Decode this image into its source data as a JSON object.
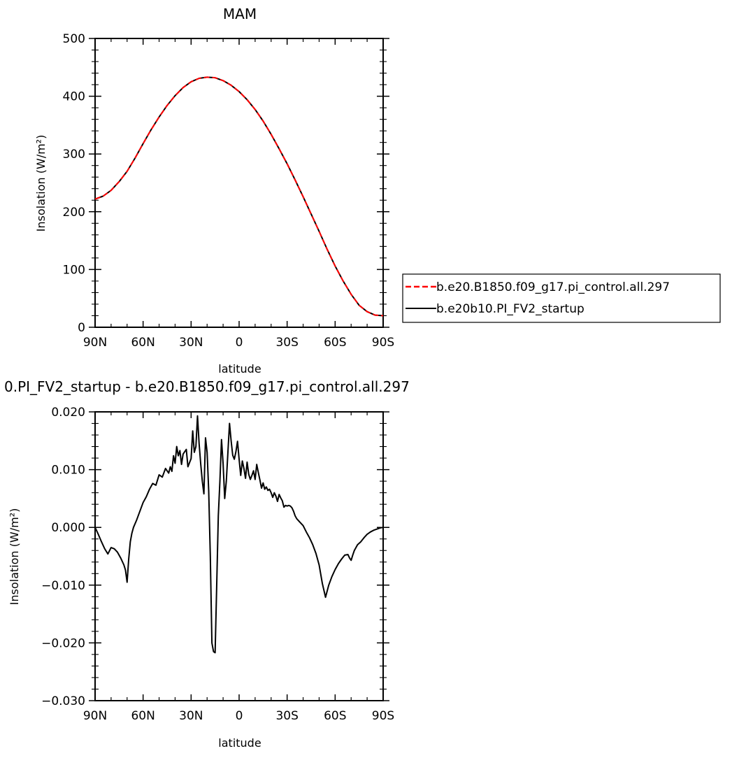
{
  "chart_data": [
    {
      "type": "line",
      "title": "MAM",
      "xlabel": "latitude",
      "ylabel": "Insolation (W/m²)",
      "x_tick_labels": [
        "90N",
        "60N",
        "30N",
        "0",
        "30S",
        "60S",
        "90S"
      ],
      "x_tick_values": [
        90,
        60,
        30,
        0,
        -30,
        -60,
        -90
      ],
      "xlim": [
        90,
        -90
      ],
      "y_tick_labels": [
        "0",
        "100",
        "200",
        "300",
        "400",
        "500"
      ],
      "y_tick_values": [
        0,
        100,
        200,
        300,
        400,
        500
      ],
      "ylim": [
        0,
        500
      ],
      "grid": false,
      "legend_position": "right",
      "x": [
        90,
        85,
        80,
        75,
        70,
        65,
        60,
        55,
        50,
        45,
        40,
        35,
        30,
        25,
        20,
        15,
        10,
        5,
        0,
        -5,
        -10,
        -15,
        -20,
        -25,
        -30,
        -35,
        -40,
        -45,
        -50,
        -55,
        -60,
        -65,
        -70,
        -75,
        -80,
        -85,
        -90
      ],
      "series": [
        {
          "name": "b.e20.B1850.f09_g17.pi_control.all.297",
          "color": "#ff0000",
          "dash": "dashed",
          "values": [
            222,
            227,
            237,
            252,
            270,
            293,
            318,
            342,
            364,
            384,
            401,
            415,
            425,
            431,
            433,
            432,
            427,
            419,
            408,
            394,
            377,
            357,
            334,
            309,
            283,
            255,
            226,
            196,
            166,
            135,
            106,
            80,
            57,
            38,
            27,
            21,
            20
          ]
        },
        {
          "name": "b.e20b10.PI_FV2_startup",
          "color": "#000000",
          "dash": "solid",
          "values": [
            222,
            227,
            237,
            252,
            270,
            293,
            318,
            342,
            364,
            384,
            401,
            415,
            425,
            431,
            433,
            432,
            427,
            419,
            408,
            394,
            377,
            357,
            334,
            309,
            283,
            255,
            226,
            196,
            166,
            135,
            106,
            80,
            57,
            38,
            27,
            21,
            20
          ]
        }
      ]
    },
    {
      "type": "line",
      "title": "0.PI_FV2_startup - b.e20.B1850.f09_g17.pi_control.all.297",
      "xlabel": "latitude",
      "ylabel": "Insolation (W/m²)",
      "x_tick_labels": [
        "90N",
        "60N",
        "30N",
        "0",
        "30S",
        "60S",
        "90S"
      ],
      "x_tick_values": [
        90,
        60,
        30,
        0,
        -30,
        -60,
        -90
      ],
      "xlim": [
        90,
        -90
      ],
      "y_tick_labels": [
        "−0.030",
        "−0.020",
        "−0.010",
        "0.000",
        "0.010",
        "0.020"
      ],
      "y_tick_values": [
        -0.03,
        -0.02,
        -0.01,
        0,
        0.01,
        0.02
      ],
      "ylim": [
        -0.03,
        0.02
      ],
      "grid": false,
      "series": [
        {
          "color": "#000000",
          "x": [
            90,
            88,
            86,
            84,
            82,
            80,
            78,
            76,
            74,
            72,
            71,
            70,
            69,
            68,
            67,
            66,
            64,
            62,
            60,
            58,
            56,
            54,
            52,
            50,
            48,
            46,
            44,
            43,
            42,
            41,
            40,
            39,
            38,
            37,
            36,
            35,
            33,
            32,
            30,
            29,
            28,
            27,
            26,
            25,
            24,
            23,
            22,
            21,
            20,
            19,
            18,
            17,
            16,
            15,
            14,
            13,
            12,
            11,
            10,
            9,
            8,
            7,
            6,
            5,
            4,
            3,
            2,
            1,
            0,
            -1,
            -2,
            -3,
            -4,
            -5,
            -6,
            -7,
            -8,
            -9,
            -10,
            -11,
            -12,
            -13,
            -14,
            -15,
            -16,
            -17,
            -18,
            -19,
            -20,
            -21,
            -22,
            -23,
            -24,
            -25,
            -26,
            -27,
            -28,
            -29,
            -30,
            -31,
            -32,
            -33,
            -34,
            -35,
            -36,
            -37,
            -38,
            -40,
            -42,
            -44,
            -46,
            -48,
            -50,
            -52,
            -54,
            -56,
            -58,
            -60,
            -62,
            -64,
            -66,
            -68,
            -69,
            -70,
            -71,
            -72,
            -74,
            -76,
            -78,
            -80,
            -82,
            -84,
            -86,
            -88,
            -90
          ],
          "values": [
            0.0,
            -0.0012,
            -0.0025,
            -0.0037,
            -0.0046,
            -0.0035,
            -0.0037,
            -0.0043,
            -0.0053,
            -0.0065,
            -0.0074,
            -0.0095,
            -0.0055,
            -0.0025,
            -0.001,
            0.0,
            0.0013,
            0.0028,
            0.0043,
            0.0053,
            0.0066,
            0.0076,
            0.0073,
            0.0091,
            0.0087,
            0.0102,
            0.0094,
            0.0105,
            0.0097,
            0.0124,
            0.0111,
            0.014,
            0.0124,
            0.0133,
            0.0109,
            0.0127,
            0.0135,
            0.0105,
            0.0119,
            0.0167,
            0.013,
            0.014,
            0.0193,
            0.0145,
            0.011,
            0.008,
            0.0058,
            0.0155,
            0.013,
            0.0063,
            -0.005,
            -0.02,
            -0.0215,
            -0.0217,
            -0.01,
            0.002,
            0.008,
            0.0152,
            0.011,
            0.005,
            0.008,
            0.013,
            0.018,
            0.015,
            0.0125,
            0.0118,
            0.0131,
            0.0149,
            0.0118,
            0.009,
            0.0115,
            0.0102,
            0.0085,
            0.0113,
            0.0092,
            0.0083,
            0.009,
            0.0098,
            0.0083,
            0.0109,
            0.0095,
            0.0082,
            0.0068,
            0.0077,
            0.0066,
            0.007,
            0.0064,
            0.0066,
            0.006,
            0.0052,
            0.006,
            0.0054,
            0.0045,
            0.0057,
            0.0051,
            0.0046,
            0.0035,
            0.0038,
            0.0037,
            0.0038,
            0.0037,
            0.0034,
            0.0028,
            0.002,
            0.0015,
            0.0012,
            0.0009,
            0.0003,
            -0.0008,
            -0.0018,
            -0.003,
            -0.0045,
            -0.0065,
            -0.0097,
            -0.0121,
            -0.01,
            -0.0085,
            -0.0073,
            -0.0063,
            -0.0055,
            -0.0048,
            -0.0047,
            -0.0053,
            -0.0057,
            -0.0048,
            -0.004,
            -0.003,
            -0.0025,
            -0.0018,
            -0.0012,
            -0.0008,
            -0.0005,
            -0.0003,
            -0.0001,
            0.0
          ]
        }
      ]
    }
  ]
}
